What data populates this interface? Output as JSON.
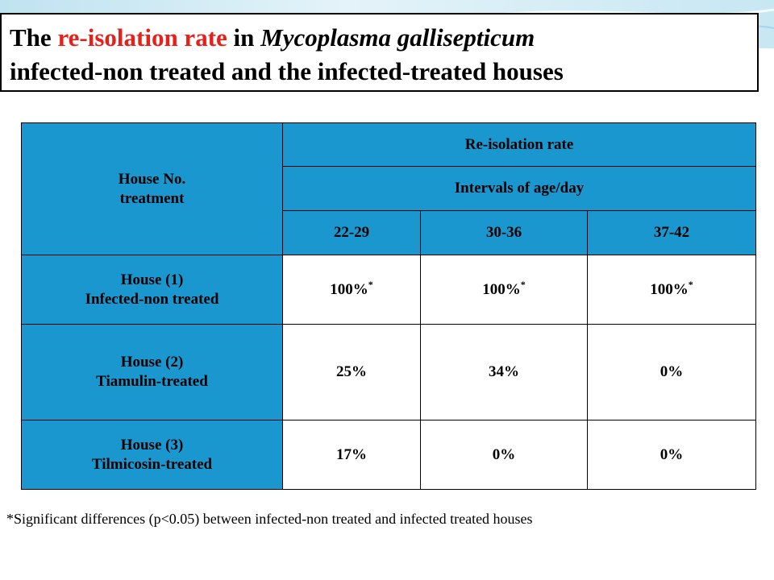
{
  "title": {
    "line1_prefix": "The ",
    "line1_red": "re-isolation rate",
    "line1_mid": " in ",
    "line1_italic": "Mycoplasma gallisepticum",
    "line2": "infected-non treated and the infected-treated houses"
  },
  "table": {
    "header_house_line1": "House No.",
    "header_house_line2": "treatment",
    "header_rate": "Re-isolation rate",
    "header_intervals": "Intervals of age/day",
    "interval_cols": [
      "22-29",
      "30-36",
      "37-42"
    ],
    "rows": [
      {
        "label_line1": "House (1)",
        "label_line2": "Infected-non treated",
        "values": [
          "100%",
          "100%",
          "100%"
        ],
        "marks": [
          "*",
          "*",
          "*"
        ]
      },
      {
        "label_line1": "House (2)",
        "label_line2": "Tiamulin-treated",
        "values": [
          "25%",
          "34%",
          "0%"
        ],
        "marks": [
          "",
          "",
          ""
        ]
      },
      {
        "label_line1": "House (3)",
        "label_line2": "Tilmicosin-treated",
        "values": [
          "17%",
          "0%",
          "0%"
        ],
        "marks": [
          "",
          "",
          ""
        ]
      }
    ]
  },
  "footnote": "*Significant differences (p<0.05) between infected-non treated and infected treated houses",
  "colors": {
    "header_fill": "#1b97cf",
    "title_highlight": "#e8201a",
    "background_band": "#bfe3f0"
  }
}
